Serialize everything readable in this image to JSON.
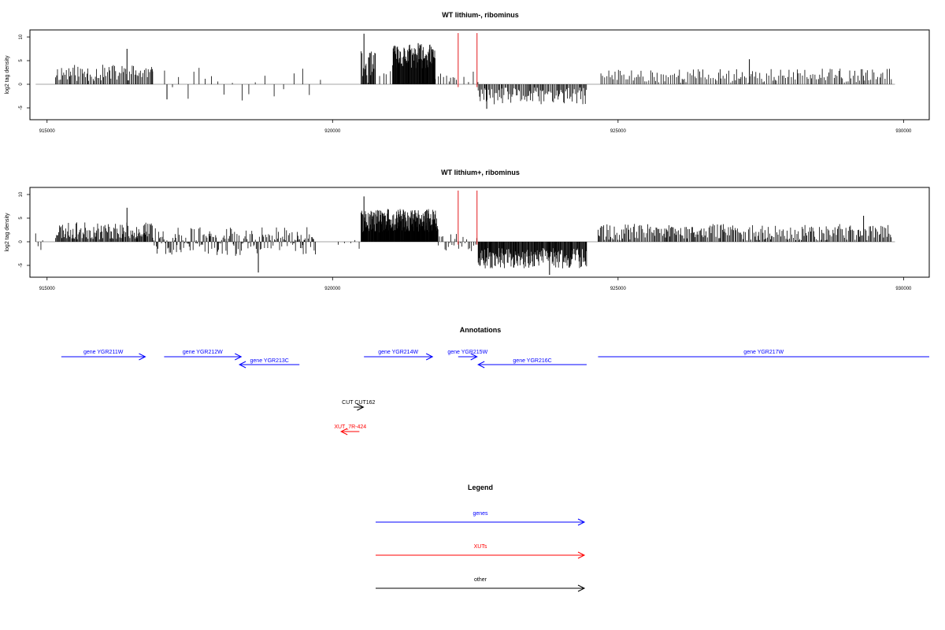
{
  "chart_data": [
    {
      "type": "bar",
      "title": "WT lithium-, ribominus",
      "ylabel": "log2 tag density",
      "xlabel": "",
      "xlim": [
        914700,
        930450
      ],
      "ylim": [
        -7.5,
        11.5
      ],
      "x_ticks": [
        915000,
        920000,
        925000,
        930000
      ],
      "x_tick_labels": [
        "915000",
        "920000",
        "925000",
        "930000"
      ],
      "y_ticks": [
        -5,
        0,
        5,
        10
      ],
      "y_tick_labels": [
        "-5",
        "0",
        "5",
        "10"
      ],
      "markers": [
        922200,
        922530
      ],
      "marker_color": "#e31a1c",
      "segments": [
        {
          "start": 915150,
          "end": 916850,
          "mean": 2.4,
          "amp": 1.8,
          "spacing": 22,
          "sign": 1
        },
        {
          "start": 916850,
          "end": 919800,
          "mean": 1.5,
          "amp": 2.0,
          "spacing": 150,
          "sign": 0
        },
        {
          "start": 920500,
          "end": 920750,
          "mean": 3.5,
          "amp": 3.5,
          "spacing": 12,
          "sign": 1
        },
        {
          "start": 920750,
          "end": 921100,
          "mean": 2.0,
          "amp": 1.5,
          "spacing": 60,
          "sign": 1
        },
        {
          "start": 921050,
          "end": 921800,
          "mean": 6.0,
          "amp": 2.6,
          "spacing": 8,
          "sign": 1
        },
        {
          "start": 921800,
          "end": 922200,
          "mean": 1.5,
          "amp": 1.0,
          "spacing": 40,
          "sign": 1
        },
        {
          "start": 922300,
          "end": 922550,
          "mean": 1.5,
          "amp": 1.2,
          "spacing": 60,
          "sign": 1
        },
        {
          "start": 922550,
          "end": 924450,
          "mean": -2.5,
          "amp": 1.8,
          "spacing": 18,
          "sign": -1
        },
        {
          "start": 924700,
          "end": 929800,
          "mean": 1.8,
          "amp": 1.5,
          "spacing": 30,
          "sign": 1
        }
      ],
      "peaks": [
        {
          "x": 920550,
          "y": 10.7
        },
        {
          "x": 916400,
          "y": 7.5
        },
        {
          "x": 921500,
          "y": 8.7
        },
        {
          "x": 922700,
          "y": -5.2
        },
        {
          "x": 917100,
          "y": -3.2
        },
        {
          "x": 927300,
          "y": 5.3
        }
      ],
      "seed": 11
    },
    {
      "type": "bar",
      "title": "WT lithium+, ribominus",
      "ylabel": "log2 tag density",
      "xlabel": "",
      "xlim": [
        914700,
        930450
      ],
      "ylim": [
        -7.5,
        11.5
      ],
      "x_ticks": [
        915000,
        920000,
        925000,
        930000
      ],
      "x_tick_labels": [
        "915000",
        "920000",
        "925000",
        "930000"
      ],
      "y_ticks": [
        -5,
        0,
        5,
        10
      ],
      "y_tick_labels": [
        "-5",
        "0",
        "5",
        "10"
      ],
      "markers": [
        922200,
        922530
      ],
      "marker_color": "#e31a1c",
      "segments": [
        {
          "start": 914800,
          "end": 914950,
          "mean": -1.0,
          "amp": 1.5,
          "spacing": 40,
          "sign": 0
        },
        {
          "start": 915150,
          "end": 916850,
          "mean": 2.3,
          "amp": 1.8,
          "spacing": 14,
          "sign": 1
        },
        {
          "start": 916850,
          "end": 919700,
          "mean": -0.5,
          "amp": 2.6,
          "spacing": 16,
          "sign": 0
        },
        {
          "start": 920100,
          "end": 920500,
          "mean": -0.5,
          "amp": 1.0,
          "spacing": 90,
          "sign": 0
        },
        {
          "start": 920500,
          "end": 921850,
          "mean": 4.5,
          "amp": 2.5,
          "spacing": 6,
          "sign": 1
        },
        {
          "start": 921850,
          "end": 922550,
          "mean": 0.0,
          "amp": 2.0,
          "spacing": 30,
          "sign": 0
        },
        {
          "start": 922550,
          "end": 924450,
          "mean": -3.5,
          "amp": 2.2,
          "spacing": 10,
          "sign": -1
        },
        {
          "start": 924650,
          "end": 929800,
          "mean": 2.0,
          "amp": 1.8,
          "spacing": 20,
          "sign": 1
        }
      ],
      "peaks": [
        {
          "x": 920550,
          "y": 9.6
        },
        {
          "x": 916400,
          "y": 7.2
        },
        {
          "x": 918700,
          "y": -6.5
        },
        {
          "x": 923800,
          "y": -7.0
        },
        {
          "x": 929300,
          "y": 5.5
        }
      ],
      "seed": 23
    }
  ],
  "annotations": {
    "title": "Annotations",
    "items": [
      {
        "label": "gene YGR211W",
        "start": 915250,
        "end": 916720,
        "row": 0,
        "dir": "right",
        "kind": "genes"
      },
      {
        "label": "gene YGR212W",
        "start": 917050,
        "end": 918400,
        "row": 0,
        "dir": "right",
        "kind": "genes"
      },
      {
        "label": "gene YGR213C",
        "start": 918370,
        "end": 919420,
        "row": 1,
        "dir": "left",
        "kind": "genes"
      },
      {
        "label": "gene YGR214W",
        "start": 920550,
        "end": 921750,
        "row": 0,
        "dir": "right",
        "kind": "genes"
      },
      {
        "label": "gene YGR215W",
        "start": 922200,
        "end": 922530,
        "row": 0,
        "dir": "right",
        "kind": "genes"
      },
      {
        "label": "gene YGR216C",
        "start": 922550,
        "end": 924450,
        "row": 1,
        "dir": "left",
        "kind": "genes"
      },
      {
        "label": "gene YGR217W",
        "start": 924650,
        "end": 930450,
        "row": 0,
        "dir": "right",
        "kind": "genes"
      },
      {
        "label": "CUT CUT162",
        "start": 920370,
        "end": 920540,
        "row": 2,
        "dir": "right",
        "kind": "other"
      },
      {
        "label": "XUT_7R-424",
        "start": 920150,
        "end": 920470,
        "row": 3,
        "dir": "left",
        "kind": "XUTs"
      }
    ]
  },
  "legend": {
    "title": "Legend",
    "items": [
      {
        "label": "genes",
        "color": "#0000ff"
      },
      {
        "label": "XUTs",
        "color": "#ff0000"
      },
      {
        "label": "other",
        "color": "#000000"
      }
    ]
  },
  "colors": {
    "genes": "#0000ff",
    "XUTs": "#ff0000",
    "other": "#000000",
    "bars": "#000000",
    "zero_line": "#888888",
    "frame": "#000000"
  }
}
